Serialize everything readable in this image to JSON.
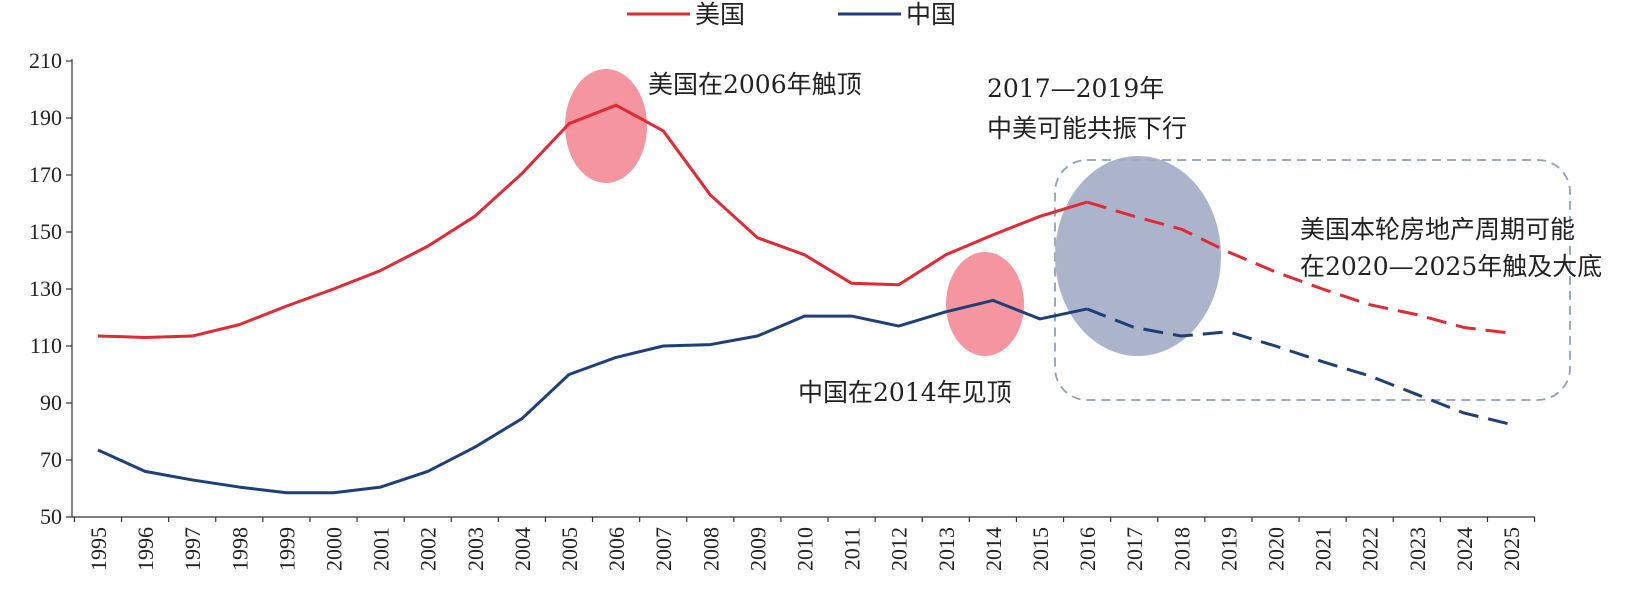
{
  "chart_data": {
    "type": "line",
    "title": "",
    "xlabel": "",
    "ylabel": "",
    "ylim": [
      50,
      210
    ],
    "yticks": [
      50,
      70,
      90,
      110,
      130,
      150,
      170,
      190,
      210
    ],
    "categories": [
      "1995",
      "1996",
      "1997",
      "1998",
      "1999",
      "2000",
      "2001",
      "2002",
      "2003",
      "2004",
      "2005",
      "2006",
      "2007",
      "2008",
      "2009",
      "2010",
      "2011",
      "2012",
      "2013",
      "2014",
      "2015",
      "2016",
      "2017",
      "2018",
      "2019",
      "2020",
      "2021",
      "2022",
      "2023",
      "2024",
      "2025"
    ],
    "legend_position": "top-center",
    "grid": false,
    "series": [
      {
        "name": "美国",
        "color": "#e02a35",
        "values": [
          113.5,
          113,
          113.5,
          117.5,
          124,
          130,
          136.5,
          145,
          155.5,
          170.5,
          188,
          194.5,
          185.5,
          163,
          148,
          142,
          132,
          131.5,
          142,
          149,
          155.5,
          160.5,
          155.5,
          151,
          143,
          136,
          130,
          124.5,
          121,
          116.5,
          114.5
        ],
        "solid_until": "2016"
      },
      {
        "name": "中国",
        "color": "#1f3f77",
        "values": [
          73.5,
          66,
          63,
          60.5,
          58.5,
          58.5,
          60.5,
          66,
          74.5,
          84.5,
          100,
          106,
          110,
          110.5,
          113.5,
          120.5,
          120.5,
          117,
          122,
          126,
          119.5,
          123,
          116.5,
          113.5,
          115,
          110,
          104.5,
          99.5,
          93,
          86.5,
          82.5
        ],
        "solid_until": "2016"
      }
    ],
    "annotations": {
      "us_peak": "美国在2006年触顶",
      "cn_peak": "中国在2014年见顶",
      "resonance_line1": "2017—2019年",
      "resonance_line2": "中美可能共振下行",
      "us_bottom_line1": "美国本轮房地产周期可能",
      "us_bottom_line2": "在2020—2025年触及大底"
    },
    "highlight_colors": {
      "us_peak_ellipse": "#f2838f",
      "cn_peak_ellipse": "#f2838f",
      "resonance_ellipse": "#a3acc6",
      "dashed_box": "#8ea0c0"
    }
  }
}
